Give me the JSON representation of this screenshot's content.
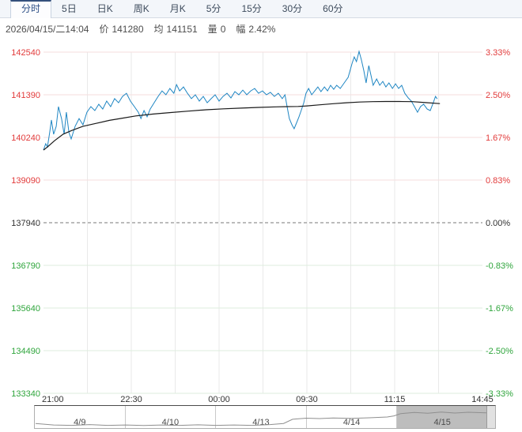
{
  "tabs": {
    "items": [
      {
        "label": "分时",
        "selected": true
      },
      {
        "label": "5日",
        "selected": false
      },
      {
        "label": "日K",
        "selected": false
      },
      {
        "label": "周K",
        "selected": false
      },
      {
        "label": "月K",
        "selected": false
      },
      {
        "label": "5分",
        "selected": false
      },
      {
        "label": "15分",
        "selected": false
      },
      {
        "label": "30分",
        "selected": false
      },
      {
        "label": "60分",
        "selected": false
      }
    ]
  },
  "quote_bar": {
    "datetime": "2026/04/15/二14:04",
    "fields": [
      {
        "label": "价",
        "value": "141280"
      },
      {
        "label": "均",
        "value": "141151"
      },
      {
        "label": "量",
        "value": "0"
      },
      {
        "label": "幅",
        "value": "2.42%"
      }
    ]
  },
  "colors": {
    "up": "#e23b3b",
    "down": "#2fa53c",
    "neutral": "#333333",
    "price_line": "#1f86c3",
    "avg_line": "#1a1a1a",
    "grid_positive": "#f6dede",
    "grid_negative": "#ddeedd",
    "grid_vertical": "#e9e9e9",
    "zero_line": "#777777"
  },
  "chart_data": {
    "type": "line",
    "title": "",
    "xlabel": "",
    "ylabel": "",
    "x_labels": [
      "21:00",
      "22:30",
      "00:00",
      "09:30",
      "11:15",
      "14:45"
    ],
    "left_ticks": [
      "142540",
      "141390",
      "140240",
      "139090",
      "137940",
      "136790",
      "135640",
      "134490",
      "133340"
    ],
    "right_ticks": [
      "3.33%",
      "2.50%",
      "1.67%",
      "0.83%",
      "0.00%",
      "-0.83%",
      "-1.67%",
      "-2.50%",
      "-3.33%"
    ],
    "ylim": [
      133340,
      142540
    ],
    "base_value": 137940,
    "value_per_row": 1150,
    "grid": "on",
    "series": [
      {
        "name": "price",
        "points": [
          [
            0.0,
            139900
          ],
          [
            0.005,
            140070
          ],
          [
            0.009,
            139985
          ],
          [
            0.014,
            140370
          ],
          [
            0.018,
            140710
          ],
          [
            0.023,
            140325
          ],
          [
            0.029,
            140540
          ],
          [
            0.034,
            141070
          ],
          [
            0.041,
            140750
          ],
          [
            0.047,
            140325
          ],
          [
            0.052,
            140920
          ],
          [
            0.058,
            140370
          ],
          [
            0.063,
            140200
          ],
          [
            0.072,
            140540
          ],
          [
            0.081,
            140750
          ],
          [
            0.09,
            140580
          ],
          [
            0.099,
            140920
          ],
          [
            0.108,
            141070
          ],
          [
            0.117,
            140965
          ],
          [
            0.126,
            141135
          ],
          [
            0.135,
            141005
          ],
          [
            0.144,
            141220
          ],
          [
            0.153,
            141070
          ],
          [
            0.162,
            141285
          ],
          [
            0.171,
            141175
          ],
          [
            0.18,
            141345
          ],
          [
            0.189,
            141430
          ],
          [
            0.198,
            141220
          ],
          [
            0.207,
            141070
          ],
          [
            0.216,
            140920
          ],
          [
            0.222,
            140750
          ],
          [
            0.229,
            140965
          ],
          [
            0.236,
            140795
          ],
          [
            0.243,
            141005
          ],
          [
            0.252,
            141175
          ],
          [
            0.261,
            141345
          ],
          [
            0.27,
            141495
          ],
          [
            0.279,
            141390
          ],
          [
            0.288,
            141560
          ],
          [
            0.297,
            141430
          ],
          [
            0.303,
            141665
          ],
          [
            0.31,
            141495
          ],
          [
            0.319,
            141600
          ],
          [
            0.328,
            141430
          ],
          [
            0.337,
            141285
          ],
          [
            0.346,
            141390
          ],
          [
            0.355,
            141220
          ],
          [
            0.364,
            141345
          ],
          [
            0.373,
            141175
          ],
          [
            0.382,
            141285
          ],
          [
            0.391,
            141390
          ],
          [
            0.4,
            141220
          ],
          [
            0.409,
            141345
          ],
          [
            0.418,
            141430
          ],
          [
            0.427,
            141305
          ],
          [
            0.436,
            141475
          ],
          [
            0.445,
            141390
          ],
          [
            0.454,
            141515
          ],
          [
            0.463,
            141390
          ],
          [
            0.472,
            141495
          ],
          [
            0.481,
            141560
          ],
          [
            0.49,
            141430
          ],
          [
            0.499,
            141495
          ],
          [
            0.508,
            141390
          ],
          [
            0.517,
            141455
          ],
          [
            0.526,
            141345
          ],
          [
            0.535,
            141430
          ],
          [
            0.544,
            141285
          ],
          [
            0.55,
            141390
          ],
          [
            0.555,
            141070
          ],
          [
            0.56,
            140750
          ],
          [
            0.566,
            140580
          ],
          [
            0.571,
            140475
          ],
          [
            0.577,
            140645
          ],
          [
            0.582,
            140795
          ],
          [
            0.587,
            140965
          ],
          [
            0.593,
            141175
          ],
          [
            0.598,
            141430
          ],
          [
            0.604,
            141560
          ],
          [
            0.611,
            141390
          ],
          [
            0.618,
            141495
          ],
          [
            0.625,
            141600
          ],
          [
            0.632,
            141475
          ],
          [
            0.64,
            141600
          ],
          [
            0.647,
            141495
          ],
          [
            0.654,
            141645
          ],
          [
            0.661,
            141540
          ],
          [
            0.668,
            141645
          ],
          [
            0.676,
            141560
          ],
          [
            0.685,
            141710
          ],
          [
            0.694,
            141860
          ],
          [
            0.703,
            142240
          ],
          [
            0.708,
            142410
          ],
          [
            0.713,
            142285
          ],
          [
            0.719,
            142560
          ],
          [
            0.724,
            142345
          ],
          [
            0.73,
            142030
          ],
          [
            0.735,
            141710
          ],
          [
            0.741,
            142175
          ],
          [
            0.746,
            141920
          ],
          [
            0.751,
            141645
          ],
          [
            0.759,
            141815
          ],
          [
            0.766,
            141645
          ],
          [
            0.773,
            141750
          ],
          [
            0.78,
            141600
          ],
          [
            0.787,
            141710
          ],
          [
            0.795,
            141560
          ],
          [
            0.802,
            141685
          ],
          [
            0.809,
            141560
          ],
          [
            0.816,
            141645
          ],
          [
            0.823,
            141430
          ],
          [
            0.831,
            141305
          ],
          [
            0.838,
            141220
          ],
          [
            0.845,
            141070
          ],
          [
            0.852,
            140920
          ],
          [
            0.859,
            141070
          ],
          [
            0.866,
            141135
          ],
          [
            0.874,
            141005
          ],
          [
            0.881,
            140965
          ],
          [
            0.888,
            141175
          ],
          [
            0.893,
            141345
          ],
          [
            0.897,
            141280
          ]
        ]
      },
      {
        "name": "average",
        "points": [
          [
            0.0,
            139900
          ],
          [
            0.01,
            139990
          ],
          [
            0.025,
            140150
          ],
          [
            0.045,
            140330
          ],
          [
            0.065,
            140430
          ],
          [
            0.09,
            140540
          ],
          [
            0.12,
            140620
          ],
          [
            0.15,
            140700
          ],
          [
            0.18,
            140760
          ],
          [
            0.21,
            140820
          ],
          [
            0.25,
            140870
          ],
          [
            0.29,
            140910
          ],
          [
            0.33,
            140950
          ],
          [
            0.37,
            140985
          ],
          [
            0.41,
            141010
          ],
          [
            0.45,
            141030
          ],
          [
            0.49,
            141050
          ],
          [
            0.53,
            141065
          ],
          [
            0.555,
            141070
          ],
          [
            0.58,
            141075
          ],
          [
            0.6,
            141090
          ],
          [
            0.63,
            141120
          ],
          [
            0.66,
            141150
          ],
          [
            0.69,
            141175
          ],
          [
            0.72,
            141195
          ],
          [
            0.75,
            141205
          ],
          [
            0.78,
            141210
          ],
          [
            0.81,
            141210
          ],
          [
            0.84,
            141205
          ],
          [
            0.87,
            141180
          ],
          [
            0.903,
            141151
          ]
        ]
      }
    ]
  },
  "navigator": {
    "dates": [
      "4/9",
      "4/10",
      "4/13",
      "4/14",
      "4/15"
    ],
    "selected_index": 4,
    "line_points": [
      [
        0.0,
        0.8
      ],
      [
        0.04,
        0.88
      ],
      [
        0.08,
        0.9
      ],
      [
        0.12,
        0.86
      ],
      [
        0.16,
        0.9
      ],
      [
        0.2,
        0.88
      ],
      [
        0.24,
        0.91
      ],
      [
        0.28,
        0.88
      ],
      [
        0.32,
        0.9
      ],
      [
        0.36,
        0.87
      ],
      [
        0.4,
        0.9
      ],
      [
        0.44,
        0.88
      ],
      [
        0.48,
        0.9
      ],
      [
        0.52,
        0.86
      ],
      [
        0.55,
        0.8
      ],
      [
        0.57,
        0.58
      ],
      [
        0.6,
        0.52
      ],
      [
        0.63,
        0.54
      ],
      [
        0.66,
        0.51
      ],
      [
        0.7,
        0.53
      ],
      [
        0.74,
        0.5
      ],
      [
        0.78,
        0.46
      ],
      [
        0.795,
        0.4
      ],
      [
        0.81,
        0.28
      ],
      [
        0.84,
        0.22
      ],
      [
        0.87,
        0.26
      ],
      [
        0.9,
        0.2
      ],
      [
        0.93,
        0.25
      ],
      [
        0.96,
        0.21
      ],
      [
        1.0,
        0.24
      ]
    ]
  }
}
